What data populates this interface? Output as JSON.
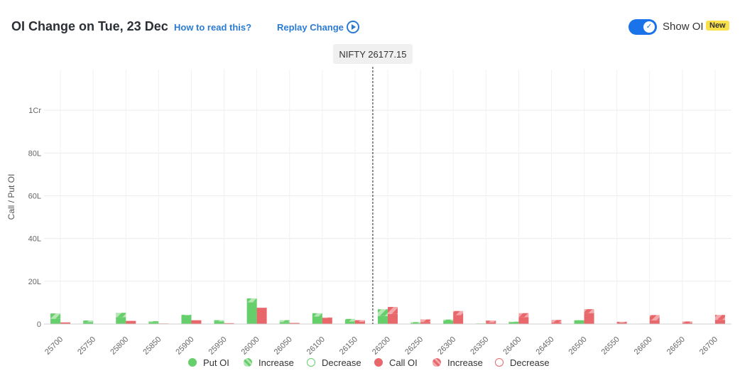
{
  "header": {
    "title": "OI Change on Tue, 23 Dec",
    "how_label": "How to read this?",
    "replay_label": "Replay Change",
    "show_oi_label": "Show OI",
    "new_badge": "New"
  },
  "colors": {
    "put": "#64cf6b",
    "put_light": "#b5e6b4",
    "call": "#e8676b",
    "call_light": "#f3a8ab",
    "accent": "#1a73e8"
  },
  "legend": [
    {
      "label": "Put OI",
      "style": "put-solid"
    },
    {
      "label": "Increase",
      "style": "put-hatched"
    },
    {
      "label": "Decrease",
      "style": "put-outline"
    },
    {
      "label": "Call OI",
      "style": "call-solid"
    },
    {
      "label": "Increase",
      "style": "call-hatched"
    },
    {
      "label": "Decrease",
      "style": "call-outline"
    }
  ],
  "chart_data": {
    "type": "bar",
    "ylabel": "Call / Put OI",
    "ylim": [
      0,
      11900000
    ],
    "y_ticks": [
      0,
      20000000,
      40000000,
      60000000,
      80000000,
      100000000
    ],
    "y_tick_labels": [
      "0",
      "20L",
      "40L",
      "60L",
      "80L",
      "1Cr"
    ],
    "spot_label": "NIFTY 26177.15",
    "spot_value": 26177.15,
    "categories": [
      "25700",
      "25750",
      "25800",
      "25850",
      "25900",
      "25950",
      "26000",
      "26050",
      "26100",
      "26150",
      "26200",
      "26250",
      "26300",
      "26350",
      "26400",
      "26450",
      "26500",
      "26550",
      "26600",
      "26650",
      "26700"
    ],
    "series": [
      {
        "name": "Put OI",
        "base": [
          2450000,
          900000,
          3250000,
          900000,
          4100000,
          1200000,
          10200000,
          900000,
          3500000,
          1150000,
          3750000,
          350000,
          1500000,
          250000,
          850000,
          50000,
          1750000,
          30000,
          150000,
          30000,
          100000
        ],
        "increase": [
          2500000,
          750000,
          2000000,
          450000,
          250000,
          600000,
          1800000,
          900000,
          1550000,
          1250000,
          3150000,
          550000,
          600000,
          0,
          250000,
          50000,
          50000,
          20000,
          50000,
          20000,
          50000
        ],
        "decrease": [
          0,
          0,
          0,
          0,
          0,
          0,
          0,
          0,
          0,
          0,
          0,
          0,
          0,
          0,
          0,
          0,
          0,
          0,
          0,
          0,
          0
        ]
      },
      {
        "name": "Call OI",
        "base": [
          750000,
          100000,
          1200000,
          250000,
          1350000,
          400000,
          7100000,
          500000,
          2800000,
          1000000,
          4700000,
          950000,
          4150000,
          750000,
          3250000,
          650000,
          5100000,
          600000,
          1750000,
          500000,
          1950000
        ],
        "increase": [
          0,
          0,
          0,
          0,
          0,
          0,
          0,
          0,
          250000,
          800000,
          3300000,
          1200000,
          1950000,
          850000,
          1850000,
          1250000,
          1850000,
          450000,
          2450000,
          700000,
          2300000
        ],
        "decrease": [
          0,
          0,
          100000,
          0,
          250000,
          0,
          350000,
          0,
          0,
          0,
          0,
          0,
          0,
          0,
          0,
          0,
          0,
          0,
          0,
          0,
          0
        ]
      }
    ],
    "grid": true
  }
}
